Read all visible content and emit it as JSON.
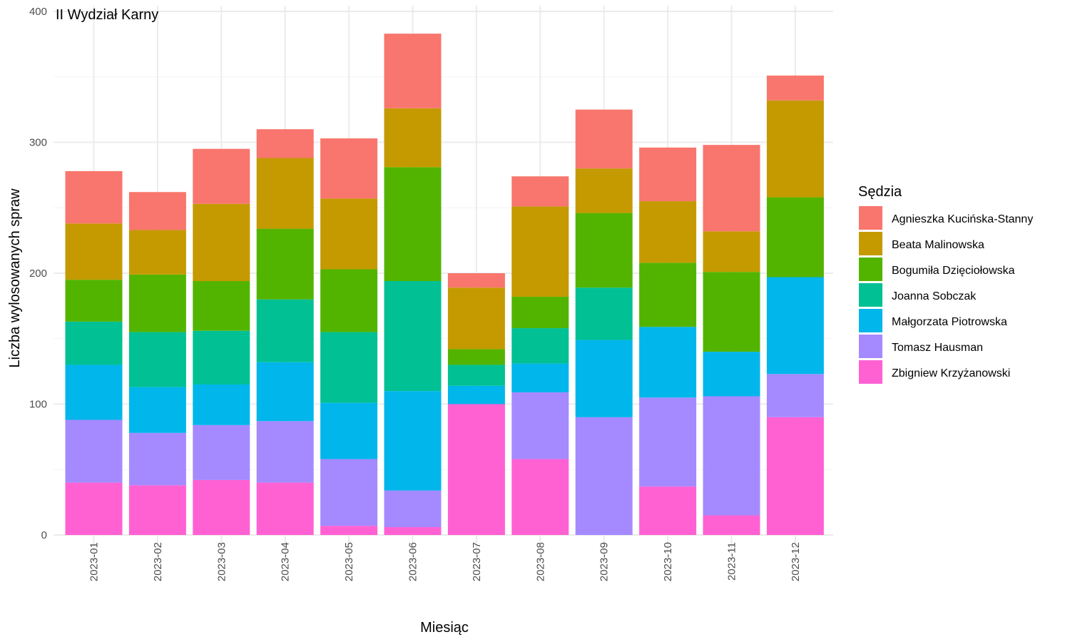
{
  "chart_data": {
    "type": "bar",
    "stacked": true,
    "title": "II Wydział Karny",
    "xlabel": "Miesiąc",
    "ylabel": "Liczba wylosowanych spraw",
    "ylim": [
      0,
      400
    ],
    "yticks": [
      0,
      100,
      200,
      300,
      400
    ],
    "grid": true,
    "legend_title": "Sędzia",
    "legend_position": "right",
    "categories": [
      "2023-01",
      "2023-02",
      "2023-03",
      "2023-04",
      "2023-05",
      "2023-06",
      "2023-07",
      "2023-08",
      "2023-09",
      "2023-10",
      "2023-11",
      "2023-12"
    ],
    "series": [
      {
        "name": "Zbigniew Krzyżanowski",
        "color": "#FF61D3",
        "values": [
          40,
          38,
          42,
          40,
          7,
          6,
          100,
          58,
          0,
          37,
          15,
          90
        ]
      },
      {
        "name": "Tomasz Hausman",
        "color": "#A58AFF",
        "values": [
          48,
          40,
          42,
          47,
          51,
          28,
          0,
          51,
          90,
          68,
          91,
          33
        ]
      },
      {
        "name": "Małgorzata Piotrowska",
        "color": "#00B6EB",
        "values": [
          42,
          35,
          31,
          45,
          43,
          76,
          14,
          22,
          59,
          54,
          34,
          74
        ]
      },
      {
        "name": "Joanna Sobczak",
        "color": "#00C094",
        "values": [
          33,
          42,
          41,
          48,
          54,
          84,
          16,
          27,
          40,
          0,
          0,
          0
        ]
      },
      {
        "name": "Bogumiła Dzięciołowska",
        "color": "#53B400",
        "values": [
          32,
          44,
          38,
          54,
          48,
          87,
          12,
          24,
          57,
          49,
          61,
          61
        ]
      },
      {
        "name": "Beata Malinowska",
        "color": "#C49A00",
        "values": [
          43,
          34,
          59,
          54,
          54,
          45,
          47,
          69,
          34,
          47,
          31,
          74
        ]
      },
      {
        "name": "Agnieszka Kucińska-Stanny",
        "color": "#F8766D",
        "values": [
          40,
          29,
          42,
          22,
          46,
          57,
          11,
          23,
          45,
          41,
          66,
          19
        ]
      }
    ],
    "legend_order": [
      "Agnieszka Kucińska-Stanny",
      "Beata Malinowska",
      "Bogumiła Dzięciołowska",
      "Joanna Sobczak",
      "Małgorzata Piotrowska",
      "Tomasz Hausman",
      "Zbigniew Krzyżanowski"
    ]
  }
}
